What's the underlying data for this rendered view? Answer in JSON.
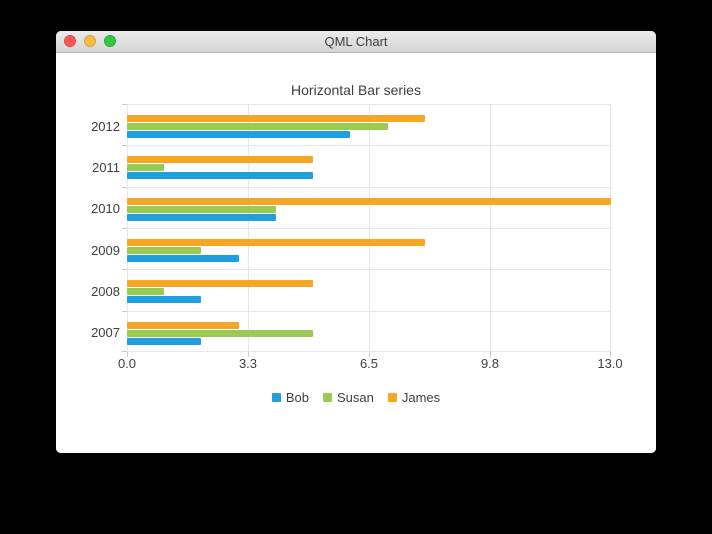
{
  "window": {
    "title": "QML Chart",
    "controls": [
      {
        "name": "close",
        "color": "#fc5753"
      },
      {
        "name": "minimize",
        "color": "#fdbc40"
      },
      {
        "name": "zoom",
        "color": "#33c748"
      }
    ]
  },
  "chart_data": {
    "type": "bar",
    "orientation": "horizontal",
    "title": "Horizontal Bar series",
    "categories": [
      "2007",
      "2008",
      "2009",
      "2010",
      "2011",
      "2012"
    ],
    "category_display_order": "2012 at top, 2007 at bottom",
    "series": [
      {
        "name": "Bob",
        "color": "#209fdf",
        "values": [
          2,
          2,
          3,
          4,
          5,
          6
        ]
      },
      {
        "name": "Susan",
        "color": "#99ca53",
        "values": [
          5,
          1,
          2,
          4,
          1,
          7
        ]
      },
      {
        "name": "James",
        "color": "#f6a625",
        "values": [
          3,
          5,
          8,
          13,
          5,
          8
        ]
      }
    ],
    "series_display_order_in_group": "James top, Susan middle, Bob bottom",
    "xlabel": "",
    "ylabel": "",
    "x_axis": {
      "min": 0,
      "max": 13,
      "ticks": [
        0,
        3.25,
        6.5,
        9.75,
        13
      ],
      "tick_labels": [
        "0.0",
        "3.3",
        "6.5",
        "9.8",
        "13.0"
      ]
    },
    "grid": true,
    "legend": {
      "position": "bottom",
      "entries": [
        "Bob",
        "Susan",
        "James"
      ]
    },
    "text_color": "#404044",
    "gridline_color": "#e7e7e7"
  }
}
